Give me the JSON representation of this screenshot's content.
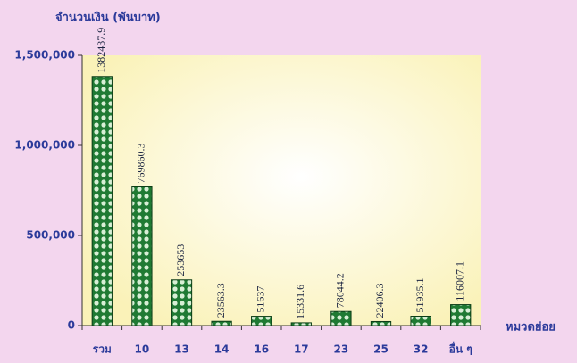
{
  "chart_data": {
    "type": "bar",
    "y_label": "จำนวนเงิน (พันบาท)",
    "x_label": "หมวดย่อย",
    "categories": [
      "รวม",
      "10",
      "13",
      "14",
      "16",
      "17",
      "23",
      "25",
      "32",
      "อื่น ๆ"
    ],
    "values": [
      1382437.9,
      769860.3,
      253653,
      23563.3,
      51637,
      15331.6,
      78044.2,
      22406.3,
      51935.1,
      116007.1
    ],
    "color": "#1f7a33",
    "ylim": [
      0,
      1500000
    ],
    "yticks": [
      0,
      {
        "value": 500000,
        "label": "500,000"
      },
      {
        "value": 1000000,
        "label": "1,000,000"
      },
      {
        "value": 1500000,
        "label": "1,500,000"
      }
    ]
  }
}
